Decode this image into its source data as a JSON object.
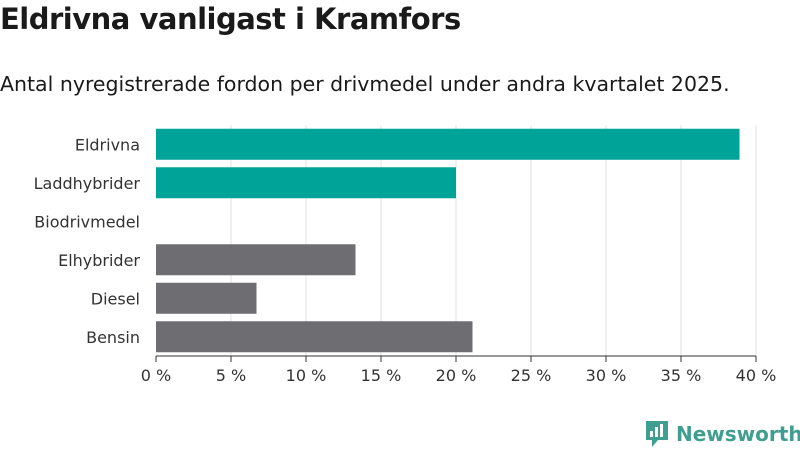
{
  "header": {
    "title": "Eldrivna vanligast i Kramfors",
    "subtitle": "Antal nyregistrerade fordon per drivmedel under andra kvartalet 2025."
  },
  "brand": {
    "name": "Newsworthy",
    "color": "#3f9e8f",
    "icon": "newsworthy-logo-icon"
  },
  "colors": {
    "highlight": "#00a398",
    "neutral": "#6e6d72"
  },
  "chart_data": {
    "type": "bar",
    "orientation": "horizontal",
    "categories": [
      "Eldrivna",
      "Laddhybrider",
      "Biodrivmedel",
      "Elhybrider",
      "Diesel",
      "Bensin"
    ],
    "values": [
      38.9,
      20.0,
      0,
      13.3,
      6.7,
      21.1
    ],
    "highlighted": [
      true,
      true,
      false,
      false,
      false,
      false
    ],
    "x_ticks": [
      0,
      5,
      10,
      15,
      20,
      25,
      30,
      35,
      40
    ],
    "x_tick_labels": [
      "0 %",
      "5 %",
      "10 %",
      "15 %",
      "20 %",
      "25 %",
      "30 %",
      "35 %",
      "40 %"
    ],
    "xlim": [
      0,
      40
    ],
    "grid": true
  }
}
